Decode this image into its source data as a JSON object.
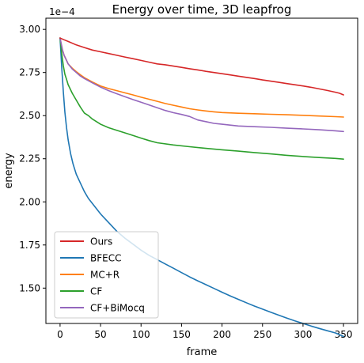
{
  "chart_data": {
    "type": "line",
    "title": "Energy over time, 3D leapfrog",
    "xlabel": "frame",
    "ylabel": "energy",
    "y_offset_label": "1e−4",
    "xlim": [
      -17.5,
      367.5
    ],
    "ylim": [
      1.295,
      3.065
    ],
    "xticks": [
      0,
      50,
      100,
      150,
      200,
      250,
      300,
      350
    ],
    "xtick_labels": [
      "0",
      "50",
      "100",
      "150",
      "200",
      "250",
      "300",
      "350"
    ],
    "yticks": [
      1.5,
      1.75,
      2.0,
      2.25,
      2.5,
      2.75,
      3.0
    ],
    "ytick_labels": [
      "1.50",
      "1.75",
      "2.00",
      "2.25",
      "2.50",
      "2.75",
      "3.00"
    ],
    "grid": false,
    "legend_position": "lower-left",
    "series": [
      {
        "name": "Ours",
        "color": "#d62728",
        "x": [
          0,
          5,
          10,
          20,
          30,
          40,
          50,
          60,
          70,
          80,
          90,
          100,
          110,
          120,
          130,
          140,
          150,
          160,
          170,
          180,
          190,
          200,
          210,
          220,
          230,
          240,
          250,
          260,
          270,
          280,
          290,
          300,
          310,
          320,
          330,
          340,
          345,
          350
        ],
        "y": [
          2.95,
          2.94,
          2.93,
          2.91,
          2.895,
          2.88,
          2.87,
          2.86,
          2.85,
          2.84,
          2.83,
          2.82,
          2.81,
          2.8,
          2.795,
          2.787,
          2.78,
          2.772,
          2.765,
          2.757,
          2.75,
          2.743,
          2.736,
          2.729,
          2.722,
          2.715,
          2.707,
          2.7,
          2.693,
          2.686,
          2.679,
          2.672,
          2.664,
          2.655,
          2.646,
          2.636,
          2.63,
          2.62
        ]
      },
      {
        "name": "BFECC",
        "color": "#1f77b4",
        "x": [
          0,
          2,
          4,
          6,
          8,
          10,
          13,
          16,
          20,
          25,
          30,
          35,
          40,
          50,
          60,
          70,
          80,
          90,
          100,
          110,
          120,
          130,
          140,
          150,
          160,
          170,
          180,
          190,
          200,
          210,
          220,
          230,
          240,
          250,
          260,
          270,
          280,
          290,
          300,
          310,
          320,
          330,
          340,
          350
        ],
        "y": [
          2.95,
          2.78,
          2.64,
          2.52,
          2.43,
          2.36,
          2.28,
          2.22,
          2.16,
          2.11,
          2.06,
          2.02,
          1.99,
          1.93,
          1.88,
          1.83,
          1.79,
          1.755,
          1.72,
          1.69,
          1.665,
          1.64,
          1.615,
          1.59,
          1.565,
          1.542,
          1.52,
          1.498,
          1.476,
          1.455,
          1.435,
          1.415,
          1.396,
          1.378,
          1.36,
          1.343,
          1.326,
          1.31,
          1.295,
          1.28,
          1.266,
          1.253,
          1.24,
          1.22
        ]
      },
      {
        "name": "MC+R",
        "color": "#ff7f0e",
        "x": [
          0,
          3,
          5,
          8,
          10,
          15,
          20,
          25,
          30,
          40,
          50,
          60,
          70,
          80,
          90,
          100,
          110,
          120,
          130,
          140,
          150,
          160,
          170,
          180,
          190,
          200,
          220,
          240,
          260,
          280,
          300,
          320,
          340,
          350
        ],
        "y": [
          2.95,
          2.88,
          2.85,
          2.82,
          2.8,
          2.775,
          2.755,
          2.737,
          2.72,
          2.695,
          2.672,
          2.657,
          2.645,
          2.632,
          2.62,
          2.607,
          2.595,
          2.583,
          2.57,
          2.56,
          2.55,
          2.54,
          2.533,
          2.527,
          2.522,
          2.518,
          2.514,
          2.511,
          2.508,
          2.505,
          2.502,
          2.498,
          2.494,
          2.492
        ]
      },
      {
        "name": "CF",
        "color": "#2ca02c",
        "x": [
          0,
          2,
          4,
          6,
          8,
          10,
          15,
          20,
          25,
          30,
          35,
          40,
          50,
          60,
          70,
          80,
          90,
          100,
          110,
          120,
          140,
          160,
          180,
          200,
          220,
          240,
          260,
          280,
          300,
          320,
          340,
          350
        ],
        "y": [
          2.95,
          2.86,
          2.79,
          2.74,
          2.71,
          2.68,
          2.63,
          2.59,
          2.55,
          2.515,
          2.5,
          2.48,
          2.45,
          2.43,
          2.415,
          2.4,
          2.385,
          2.37,
          2.355,
          2.343,
          2.33,
          2.32,
          2.31,
          2.302,
          2.294,
          2.286,
          2.278,
          2.27,
          2.263,
          2.257,
          2.252,
          2.248
        ]
      },
      {
        "name": "CF+BiMocq",
        "color": "#9467bd",
        "x": [
          0,
          3,
          5,
          8,
          10,
          15,
          20,
          25,
          30,
          40,
          50,
          60,
          70,
          80,
          90,
          100,
          110,
          120,
          130,
          140,
          150,
          160,
          170,
          180,
          190,
          200,
          220,
          240,
          260,
          280,
          300,
          320,
          340,
          350
        ],
        "y": [
          2.95,
          2.88,
          2.85,
          2.82,
          2.8,
          2.77,
          2.75,
          2.73,
          2.715,
          2.69,
          2.665,
          2.645,
          2.627,
          2.61,
          2.593,
          2.578,
          2.562,
          2.546,
          2.53,
          2.517,
          2.507,
          2.495,
          2.475,
          2.465,
          2.455,
          2.45,
          2.44,
          2.436,
          2.432,
          2.427,
          2.423,
          2.418,
          2.412,
          2.408
        ]
      }
    ]
  }
}
